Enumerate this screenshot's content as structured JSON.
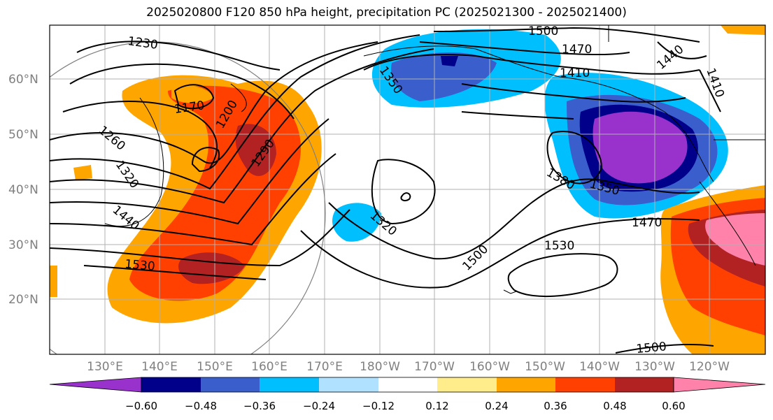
{
  "title": "2025020800 F120 850 hPa height, precipitation PC (2025021300 - 2025021400)",
  "lat_labels": [
    "60°N",
    "50°N",
    "40°N",
    "30°N",
    "20°N"
  ],
  "lon_labels": [
    "130°E",
    "140°E",
    "150°E",
    "160°E",
    "170°E",
    "180°W",
    "170°W",
    "160°W",
    "150°W",
    "140°W",
    "130°W",
    "120°W"
  ],
  "contour_labels": [
    "1230",
    "1170",
    "1200",
    "1260",
    "1290",
    "1320",
    "1440",
    "1530",
    "1350",
    "1500",
    "1470",
    "1410",
    "1440",
    "1410",
    "1380",
    "1350",
    "1320",
    "1500",
    "1530",
    "1470",
    "1500"
  ],
  "colorbar": {
    "ticks": [
      "−0.60",
      "−0.48",
      "−0.36",
      "−0.24",
      "−0.12",
      "0.12",
      "0.24",
      "0.36",
      "0.48",
      "0.60"
    ],
    "colors": [
      "#9932cc",
      "#00008b",
      "#3a5fcd",
      "#00bfff",
      "#b0e2ff",
      "#ffffff",
      "#ffec8b",
      "#ffa500",
      "#ff4000",
      "#b22222",
      "#ff82ab",
      "#ff82ab"
    ]
  },
  "colors": {
    "neg_strong": "#9932cc",
    "neg_mid": "#3a5fcd",
    "neg_light": "#00bfff",
    "pos_light": "#ffa500",
    "pos_mid": "#ff4000",
    "pos_strong": "#b22222",
    "pos_max": "#ff82ab"
  }
}
